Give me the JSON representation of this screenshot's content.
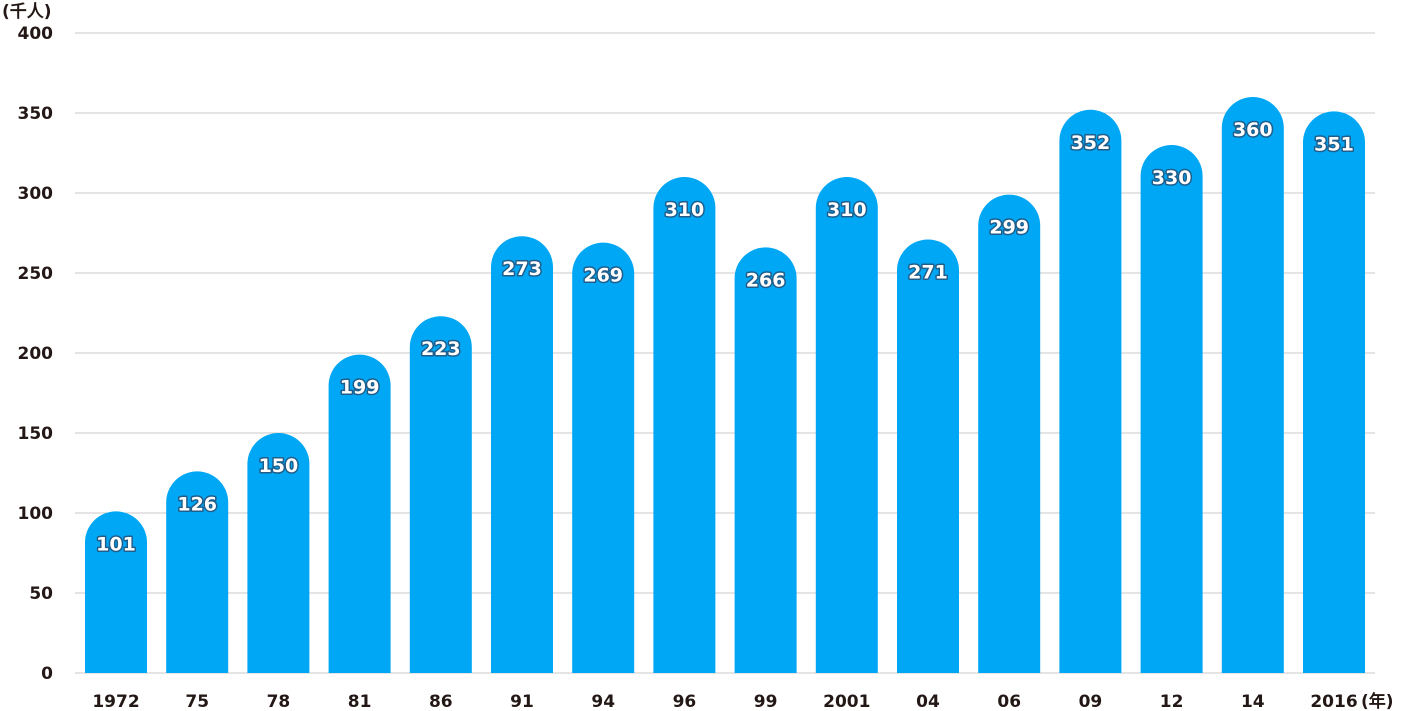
{
  "chart_data": {
    "type": "bar",
    "y_unit_label": "(千人)",
    "x_unit_label": "(年)",
    "categories": [
      "1972",
      "75",
      "78",
      "81",
      "86",
      "91",
      "94",
      "96",
      "99",
      "2001",
      "04",
      "06",
      "09",
      "12",
      "14",
      "2016"
    ],
    "values": [
      101,
      126,
      150,
      199,
      223,
      273,
      269,
      310,
      266,
      310,
      271,
      299,
      352,
      330,
      360,
      351
    ],
    "ylim": [
      0,
      400
    ],
    "yticks": [
      0,
      50,
      100,
      150,
      200,
      250,
      300,
      350,
      400
    ],
    "grid": true,
    "bar_color": "#00a7f5",
    "label_outline_color": "#1f5d8a"
  }
}
